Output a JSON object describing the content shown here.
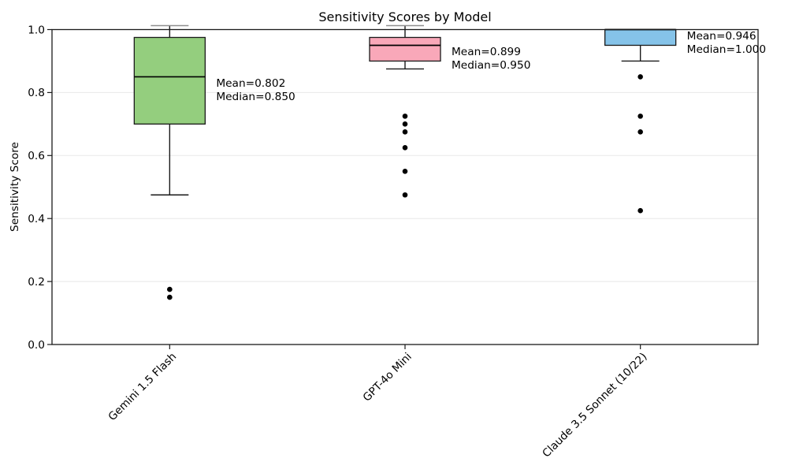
{
  "chart_data": {
    "type": "boxplot",
    "title": "Sensitivity Scores by Model",
    "ylabel": "Sensitivity Score",
    "xlabel": "",
    "ylim": [
      0.0,
      1.0
    ],
    "ytick_labels": [
      "0.0",
      "0.2",
      "0.4",
      "0.6",
      "0.8",
      "1.0"
    ],
    "ytick_values": [
      0.0,
      0.2,
      0.4,
      0.6,
      0.8,
      1.0
    ],
    "grid": "horizontal",
    "grid_color": "#e8e8e8",
    "spine_color": "#1a1a1a",
    "outlier_color": "#000000",
    "clipped_cap_color": "#8f8f8f",
    "series": [
      {
        "label": "Gemini 1.5 Flash",
        "box_color": "#94ce7e",
        "whisker_low": 0.475,
        "q1": 0.7,
        "median": 0.85,
        "q3": 0.975,
        "whisker_high": 1.0,
        "mean": 0.802,
        "outliers": [
          0.175,
          0.15
        ],
        "annotation_lines": [
          "Mean=0.802",
          "Median=0.850"
        ]
      },
      {
        "label": "GPT-4o Mini",
        "box_color": "#f9a8b9",
        "whisker_low": 0.875,
        "q1": 0.9,
        "median": 0.95,
        "q3": 0.975,
        "whisker_high": 1.0,
        "mean": 0.899,
        "outliers": [
          0.725,
          0.7,
          0.675,
          0.625,
          0.55,
          0.475
        ],
        "annotation_lines": [
          "Mean=0.899",
          "Median=0.950"
        ]
      },
      {
        "label": "Claude 3.5 Sonnet (10/22)",
        "box_color": "#85c3e9",
        "whisker_low": 0.9,
        "q1": 0.95,
        "median": 1.0,
        "q3": 1.0,
        "whisker_high": 1.0,
        "mean": 0.946,
        "outliers": [
          0.85,
          0.725,
          0.675,
          0.425
        ],
        "annotation_lines": [
          "Mean=0.946",
          "Median=1.000"
        ]
      }
    ]
  }
}
